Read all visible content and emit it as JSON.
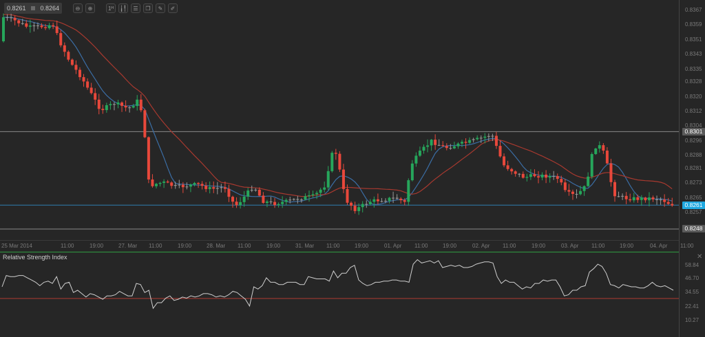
{
  "toolbar": {
    "bid": "0.8261",
    "ask": "0.8264",
    "buttons": [
      {
        "name": "zoom-out-icon",
        "glyph": "⊖"
      },
      {
        "name": "zoom-in-icon",
        "glyph": "⊕"
      },
      {
        "name": "timeframe-icon",
        "glyph": "1ᴴ"
      },
      {
        "name": "chart-type-icon",
        "glyph": "╽╿"
      },
      {
        "name": "indicators-icon",
        "glyph": "☰"
      },
      {
        "name": "objects-icon",
        "glyph": "❐"
      },
      {
        "name": "edit-icon",
        "glyph": "✎"
      },
      {
        "name": "draw-icon",
        "glyph": "✐"
      }
    ]
  },
  "colors": {
    "background": "#262626",
    "grid": "#333333",
    "up": "#26a65b",
    "down": "#e8483b",
    "doji": "#9a9a9a",
    "ma_fast": "#3b6ea5",
    "ma_slow": "#a8392f",
    "hline": "#8a8a8a",
    "current_line": "#2f7fb0",
    "current_tag": "#1fa8e0",
    "rsi_line": "#cfcfcf",
    "rsi_level": "#b03a32",
    "separator": "#2e8b3e"
  },
  "price_axis": {
    "ticks": [
      "0.8367",
      "0.8359",
      "0.8351",
      "0.8343",
      "0.8335",
      "0.8328",
      "0.8320",
      "0.8312",
      "0.8304",
      "0.8296",
      "0.8288",
      "0.8281",
      "0.8273",
      "0.8265",
      "0.8257"
    ],
    "tags": [
      {
        "label": "0.8301",
        "type": "hline"
      },
      {
        "label": "0.8261",
        "type": "current"
      },
      {
        "label": "0.8248",
        "type": "hline"
      }
    ]
  },
  "time_axis": {
    "labels": [
      "25 Mar 2014",
      "11:00",
      "19:00",
      "27. Mar",
      "11:00",
      "19:00",
      "28. Mar",
      "11:00",
      "19:00",
      "31. Mar",
      "11:00",
      "19:00",
      "01. Apr",
      "11:00",
      "19:00",
      "02. Apr",
      "11:00",
      "19:00",
      "03. Apr",
      "11:00",
      "19:00",
      "04. Apr",
      "11:00"
    ]
  },
  "rsi": {
    "title": "Relative Strength Index",
    "close_label": "✕",
    "ticks": [
      "58.84",
      "46.70",
      "34.55",
      "22.41",
      "10.27"
    ]
  },
  "chart_data": [
    {
      "type": "candlestick",
      "title": "",
      "instrument_quote": {
        "bid": 0.8261,
        "ask": 0.8264
      },
      "xlabel": "",
      "ylabel": "",
      "x_tick_labels": [
        "25 Mar 2014",
        "11:00",
        "19:00",
        "27. Mar",
        "11:00",
        "19:00",
        "28. Mar",
        "11:00",
        "19:00",
        "31. Mar",
        "11:00",
        "19:00",
        "01. Apr",
        "11:00",
        "19:00",
        "02. Apr",
        "11:00",
        "19:00",
        "03. Apr",
        "11:00",
        "19:00",
        "04. Apr",
        "11:00"
      ],
      "ylim": [
        0.824,
        0.8372
      ],
      "y_ticks": [
        0.8367,
        0.8359,
        0.8351,
        0.8343,
        0.8335,
        0.8328,
        0.832,
        0.8312,
        0.8304,
        0.8296,
        0.8288,
        0.8281,
        0.8273,
        0.8265,
        0.8257
      ],
      "horizontal_lines": [
        0.8301,
        0.8248
      ],
      "current_price": 0.8261,
      "overlays": [
        "moving average (fast, blue)",
        "moving average (slow, red)"
      ],
      "grid": false,
      "path_summary": [
        {
          "x_label": "25 Mar 2014",
          "price": 0.8362
        },
        {
          "x_label": "27. Mar",
          "price": 0.8315
        },
        {
          "x_label": "27. Mar 11:00",
          "price": 0.8272
        },
        {
          "x_label": "28. Mar 19:00",
          "price": 0.825
        },
        {
          "x_label": "31. Mar 11:00",
          "price": 0.8292
        },
        {
          "x_label": "01. Apr",
          "price": 0.8262
        },
        {
          "x_label": "01. Apr 11:00",
          "price": 0.829
        },
        {
          "x_label": "02. Apr",
          "price": 0.8299
        },
        {
          "x_label": "03. Apr",
          "price": 0.8267
        },
        {
          "x_label": "03. Apr 11:00",
          "price": 0.8295
        },
        {
          "x_label": "04. Apr 11:00",
          "price": 0.8261
        }
      ]
    },
    {
      "type": "line",
      "title": "Relative Strength Index",
      "y_ticks": [
        58.84,
        46.7,
        34.55,
        22.41,
        10.27
      ],
      "levels": [
        30,
        70
      ],
      "ylim": [
        5,
        68
      ],
      "values": [
        40,
        50,
        49,
        49,
        50,
        50,
        48,
        46,
        44,
        41,
        44,
        45,
        43,
        49,
        38,
        43,
        44,
        35,
        37,
        34,
        31,
        34,
        33,
        31,
        29,
        32,
        32,
        33,
        36,
        34,
        32,
        32,
        43,
        42,
        35,
        37,
        21,
        26,
        26,
        30,
        32,
        28,
        29,
        31,
        30,
        32,
        31,
        32,
        34,
        34,
        33,
        31,
        32,
        31,
        33,
        36,
        35,
        32,
        29,
        23,
        40,
        38,
        41,
        48,
        44,
        44,
        42,
        42,
        44,
        44,
        44,
        42,
        42,
        49,
        48,
        47,
        47,
        47,
        45,
        54,
        48,
        52,
        52,
        57,
        59,
        46,
        43,
        41,
        42,
        44,
        44,
        45,
        45,
        46,
        46,
        45,
        45,
        44,
        60,
        64,
        61,
        62,
        63,
        61,
        63,
        57,
        58,
        59,
        58,
        59,
        57,
        57,
        58,
        60,
        61,
        62,
        62,
        61,
        49,
        43,
        46,
        44,
        44,
        41,
        38,
        40,
        39,
        43,
        43,
        46,
        45,
        46,
        46,
        40,
        32,
        33,
        37,
        37,
        40,
        41,
        53,
        56,
        60,
        58,
        52,
        42,
        41,
        39,
        42,
        41,
        40,
        40,
        39,
        39,
        41,
        44,
        41,
        40,
        41,
        39,
        37
      ]
    }
  ]
}
